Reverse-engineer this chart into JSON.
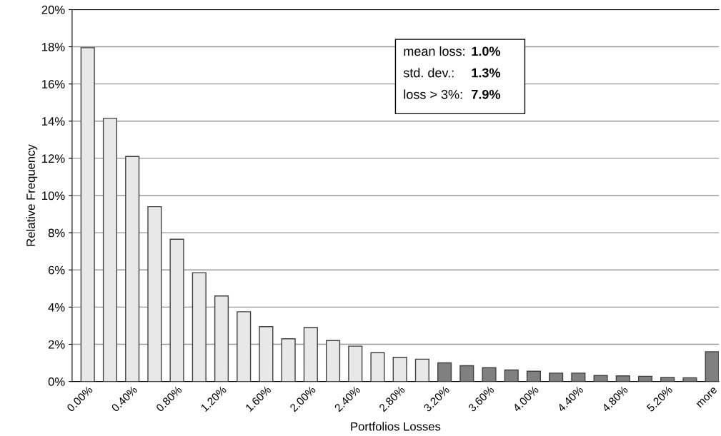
{
  "chart_data": {
    "type": "bar",
    "xlabel": "Portfolios Losses",
    "ylabel": "Relative Frequency",
    "categories": [
      "0.00%",
      null,
      "0.40%",
      null,
      "0.80%",
      null,
      "1.20%",
      null,
      "1.60%",
      null,
      "2.00%",
      null,
      "2.40%",
      null,
      "2.80%",
      null,
      "3.20%",
      null,
      "3.60%",
      null,
      "4.00%",
      null,
      "4.40%",
      null,
      "4.80%",
      null,
      "5.20%",
      null,
      "more"
    ],
    "values": [
      17.95,
      14.15,
      12.1,
      9.4,
      7.65,
      5.85,
      4.6,
      3.75,
      2.95,
      2.3,
      2.9,
      2.2,
      1.9,
      1.55,
      1.3,
      1.2,
      1.0,
      0.85,
      0.75,
      0.62,
      0.55,
      0.45,
      0.45,
      0.32,
      0.3,
      0.28,
      0.22,
      0.2,
      1.6
    ],
    "colors": [
      "#e8e8e8",
      "#e8e8e8",
      "#e8e8e8",
      "#e8e8e8",
      "#e8e8e8",
      "#e8e8e8",
      "#e8e8e8",
      "#e8e8e8",
      "#e8e8e8",
      "#e8e8e8",
      "#e8e8e8",
      "#e8e8e8",
      "#e8e8e8",
      "#e8e8e8",
      "#e8e8e8",
      "#e8e8e8",
      "#808080",
      "#808080",
      "#808080",
      "#808080",
      "#808080",
      "#808080",
      "#808080",
      "#808080",
      "#808080",
      "#808080",
      "#808080",
      "#808080",
      "#808080"
    ],
    "ylim": [
      0,
      20
    ],
    "yticks": [
      {
        "value": 0,
        "label": "0%"
      },
      {
        "value": 2,
        "label": "2%"
      },
      {
        "value": 4,
        "label": "4%"
      },
      {
        "value": 6,
        "label": "6%"
      },
      {
        "value": 8,
        "label": "8%"
      },
      {
        "value": 10,
        "label": "10%"
      },
      {
        "value": 12,
        "label": "12%"
      },
      {
        "value": 14,
        "label": "14%"
      },
      {
        "value": 16,
        "label": "16%"
      },
      {
        "value": 18,
        "label": "18%"
      },
      {
        "value": 20,
        "label": "20%"
      }
    ],
    "grid": "y",
    "legend": false,
    "annotations": [
      "mean loss:",
      "1.0%",
      "std. dev.:",
      "1.3%",
      "loss > 3%:",
      "7.9%"
    ]
  }
}
